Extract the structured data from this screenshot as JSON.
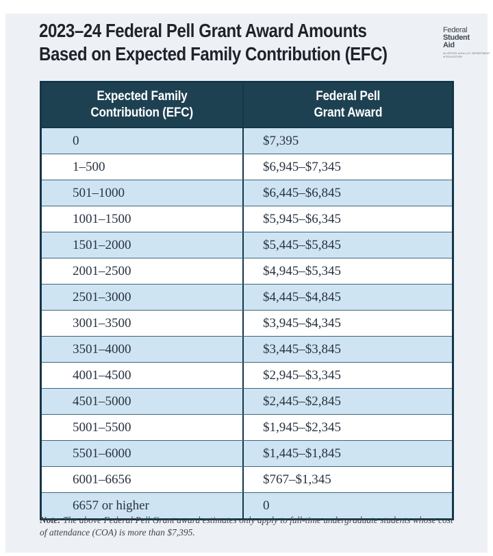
{
  "title": {
    "line1": "2023–24 Federal Pell Grant Award Amounts",
    "line2": "Based on Expected Family Contribution (EFC)"
  },
  "logo": {
    "word1": "Federal",
    "word2": "Student",
    "word3": "Aid",
    "tagline": "An OFFICE of the U.S. DEPARTMENT of EDUCATION"
  },
  "table": {
    "header": {
      "col1_line1": "Expected Family",
      "col1_line2": "Contribution (EFC)",
      "col2_line1": "Federal Pell",
      "col2_line2": "Grant Award"
    },
    "rows": [
      {
        "efc": "0",
        "award": "$7,395"
      },
      {
        "efc": "1–500",
        "award": "$6,945–$7,345"
      },
      {
        "efc": "501–1000",
        "award": "$6,445–$6,845"
      },
      {
        "efc": "1001–1500",
        "award": "$5,945–$6,345"
      },
      {
        "efc": "1501–2000",
        "award": "$5,445–$5,845"
      },
      {
        "efc": "2001–2500",
        "award": "$4,945–$5,345"
      },
      {
        "efc": "2501–3000",
        "award": "$4,445–$4,845"
      },
      {
        "efc": "3001–3500",
        "award": "$3,945–$4,345"
      },
      {
        "efc": "3501–4000",
        "award": "$3,445–$3,845"
      },
      {
        "efc": "4001–4500",
        "award": "$2,945–$3,345"
      },
      {
        "efc": "4501–5000",
        "award": "$2,445–$2,845"
      },
      {
        "efc": "5001–5500",
        "award": "$1,945–$2,345"
      },
      {
        "efc": "5501–6000",
        "award": "$1,445–$1,845"
      },
      {
        "efc": "6001–6656",
        "award": "$767–$1,345"
      },
      {
        "efc": "6657 or higher",
        "award": "0"
      }
    ]
  },
  "note": {
    "label": "Note:",
    "text": " The above Federal Pell Grant award estimates only apply to full-time undergraduate students whose cost of attendance (COA) is more than $7,395."
  },
  "colors": {
    "panel_bg": "#edf0f4",
    "title_text": "#1e232b",
    "header_bg": "#1e4152",
    "table_border": "#14364a",
    "row_blue": "#cfe4f2",
    "row_white": "#ffffff",
    "row_divider": "#3c647c",
    "cell_text": "#273240"
  }
}
